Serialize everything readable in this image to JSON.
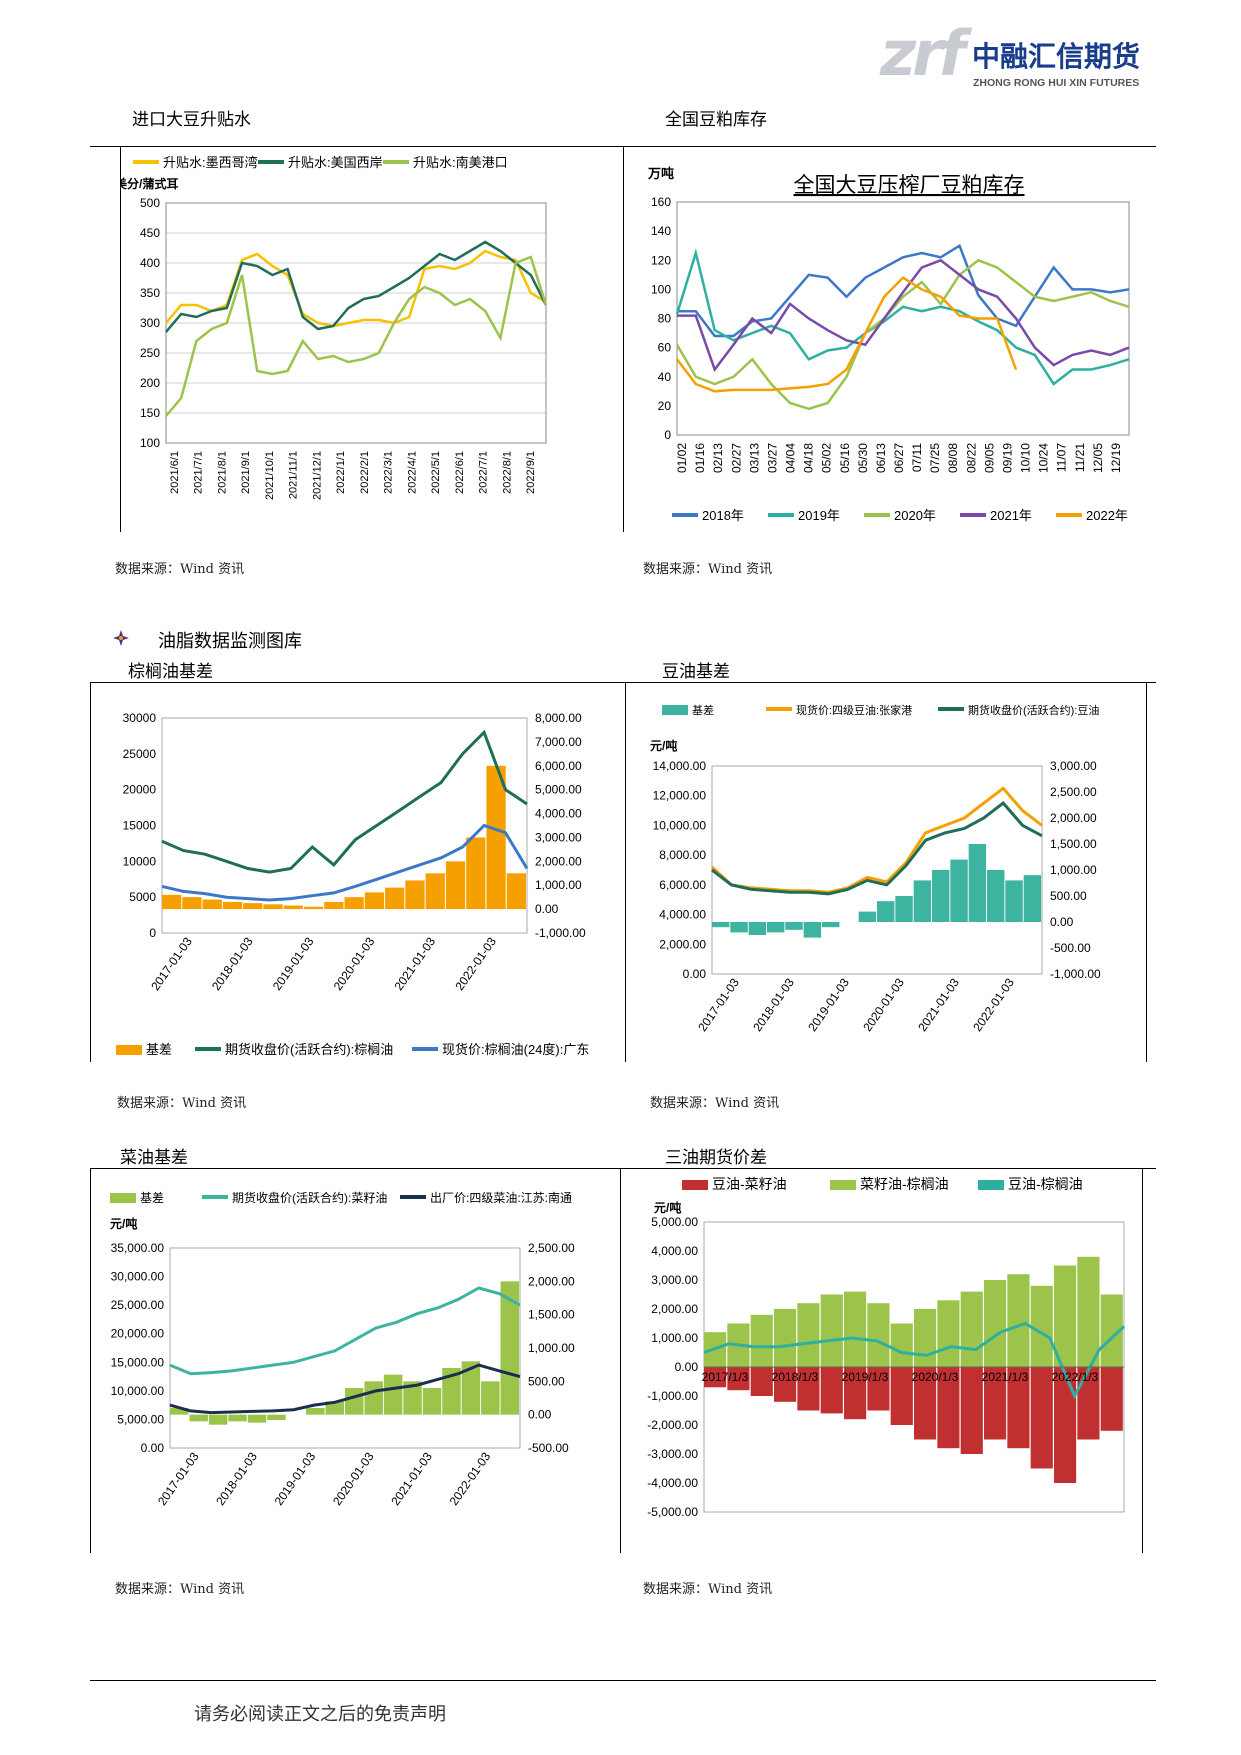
{
  "header": {
    "logo_mark": "zrf",
    "company_cn": "中融汇信期货",
    "company_en": "ZHONG RONG HUI XIN FUTURES"
  },
  "sections": {
    "s1_left": "进口大豆升贴水",
    "s1_right": "全国豆粕库存",
    "group_title": "油脂数据监测图库",
    "s2_left": "棕榈油基差",
    "s2_right": "豆油基差",
    "s3_left": "菜油基差",
    "s3_right": "三油期货价差"
  },
  "source_text": "数据来源：Wind 资讯",
  "footer": "请务必阅读正文之后的免责声明",
  "colors": {
    "yellow": "#f5c100",
    "dkgreen": "#1f6e5a",
    "ltgreen": "#9cc34a",
    "blue": "#3c78c8",
    "teal": "#2eb0a0",
    "purple": "#7b4aa8",
    "orange": "#f5a000",
    "red": "#c03030",
    "navy": "#1a2e50",
    "seagreen": "#3cb4a0"
  },
  "chart_data": [
    {
      "id": "c1",
      "type": "line",
      "ylabel": "美分/蒲式耳",
      "ylim": [
        100,
        500
      ],
      "yticks": [
        "500",
        "450",
        "400",
        "350",
        "300",
        "250",
        "200",
        "150",
        "100"
      ],
      "xticks": [
        "2021/6/1",
        "2021/7/1",
        "2021/8/1",
        "2021/9/1",
        "2021/10/1",
        "2021/11/1",
        "2021/12/1",
        "2022/1/1",
        "2022/2/1",
        "2022/3/1",
        "2022/4/1",
        "2022/5/1",
        "2022/6/1",
        "2022/7/1",
        "2022/8/1",
        "2022/9/1"
      ],
      "series": [
        {
          "name": "升贴水:墨西哥湾",
          "color": "#f5c100",
          "values": [
            300,
            330,
            330,
            320,
            330,
            405,
            415,
            395,
            380,
            315,
            300,
            295,
            300,
            305,
            305,
            300,
            310,
            390,
            395,
            390,
            400,
            420,
            410,
            405,
            350,
            335
          ]
        },
        {
          "name": "升贴水:美国西岸",
          "color": "#1f6e5a",
          "values": [
            285,
            315,
            310,
            320,
            325,
            400,
            395,
            380,
            390,
            310,
            290,
            295,
            325,
            340,
            345,
            360,
            375,
            395,
            415,
            405,
            420,
            435,
            420,
            400,
            380,
            330
          ]
        },
        {
          "name": "升贴水:南美港口",
          "color": "#9cc34a",
          "values": [
            145,
            175,
            270,
            290,
            300,
            380,
            220,
            215,
            220,
            270,
            240,
            245,
            235,
            240,
            250,
            300,
            340,
            360,
            350,
            330,
            340,
            320,
            275,
            400,
            410,
            330
          ]
        }
      ]
    },
    {
      "id": "c2",
      "type": "line",
      "title": "全国大豆压榨厂豆粕库存",
      "ylabel": "万吨",
      "ylim": [
        0,
        160
      ],
      "yticks": [
        "160",
        "140",
        "120",
        "100",
        "80",
        "60",
        "40",
        "20",
        "0"
      ],
      "xticks": [
        "01/02",
        "01/16",
        "02/13",
        "02/27",
        "03/13",
        "03/27",
        "04/04",
        "04/18",
        "05/02",
        "05/16",
        "05/30",
        "06/13",
        "06/27",
        "07/11",
        "07/25",
        "08/08",
        "08/22",
        "09/05",
        "09/19",
        "10/10",
        "10/24",
        "11/07",
        "11/21",
        "12/05",
        "12/19"
      ],
      "series": [
        {
          "name": "2018年",
          "color": "#3c78c8",
          "values": [
            85,
            85,
            68,
            68,
            78,
            80,
            95,
            110,
            108,
            95,
            108,
            115,
            122,
            125,
            122,
            130,
            96,
            80,
            75,
            95,
            115,
            100,
            100,
            98,
            100
          ]
        },
        {
          "name": "2019年",
          "color": "#2eb0a0",
          "values": [
            83,
            125,
            72,
            65,
            70,
            75,
            70,
            52,
            58,
            60,
            70,
            78,
            88,
            85,
            88,
            85,
            78,
            72,
            60,
            55,
            35,
            45,
            45,
            48,
            52
          ]
        },
        {
          "name": "2020年",
          "color": "#9cc34a",
          "values": [
            62,
            40,
            35,
            40,
            52,
            35,
            22,
            18,
            22,
            40,
            70,
            80,
            95,
            105,
            90,
            110,
            120,
            115,
            105,
            95,
            92,
            95,
            98,
            92,
            88
          ]
        },
        {
          "name": "2021年",
          "color": "#7b4aa8",
          "values": [
            82,
            82,
            45,
            62,
            80,
            70,
            90,
            80,
            72,
            65,
            62,
            80,
            98,
            115,
            120,
            110,
            100,
            95,
            80,
            60,
            48,
            55,
            58,
            55,
            60
          ]
        },
        {
          "name": "2022年",
          "color": "#f5a000",
          "values": [
            52,
            35,
            30,
            31,
            31,
            31,
            32,
            33,
            35,
            45,
            70,
            95,
            108,
            100,
            95,
            82,
            80,
            80,
            45
          ]
        }
      ]
    },
    {
      "id": "c3",
      "type": "line",
      "ylim": [
        0,
        30000
      ],
      "y2lim": [
        -1000,
        8000
      ],
      "yticks": [
        "30000",
        "25000",
        "20000",
        "15000",
        "10000",
        "5000",
        "0"
      ],
      "y2ticks": [
        "8,000.00",
        "7,000.00",
        "6,000.00",
        "5,000.00",
        "4,000.00",
        "3,000.00",
        "2,000.00",
        "1,000.00",
        "0.00",
        "-1,000.00"
      ],
      "xticks": [
        "2017-01-03",
        "2018-01-03",
        "2019-01-03",
        "2020-01-03",
        "2021-01-03",
        "2022-01-03"
      ],
      "series": [
        {
          "name": "基差",
          "color": "#f5a000",
          "values": [
            600,
            500,
            400,
            300,
            250,
            200,
            150,
            100,
            300,
            500,
            700,
            900,
            1200,
            1500,
            2000,
            3000,
            6000,
            1500
          ]
        },
        {
          "name": "期货收盘价(活跃合约):棕榈油",
          "color": "#1f6e5a",
          "values": [
            12800,
            11500,
            11000,
            10000,
            9000,
            8500,
            9000,
            12000,
            9500,
            13000,
            15000,
            17000,
            19000,
            21000,
            25000,
            28000,
            20000,
            18000
          ]
        },
        {
          "name": "现货价:棕榈油(24度):广东",
          "color": "#3c78c8",
          "values": [
            6500,
            5800,
            5500,
            5000,
            4800,
            4600,
            4800,
            5200,
            5600,
            6500,
            7500,
            8500,
            9500,
            10500,
            12000,
            15000,
            14000,
            9000
          ]
        }
      ]
    },
    {
      "id": "c4",
      "type": "line",
      "ylabel": "元/吨",
      "ylim": [
        0,
        14000
      ],
      "y2lim": [
        -1000,
        3000
      ],
      "yticks": [
        "14,000.00",
        "12,000.00",
        "10,000.00",
        "8,000.00",
        "6,000.00",
        "4,000.00",
        "2,000.00",
        "0.00"
      ],
      "y2ticks": [
        "3,000.00",
        "2,500.00",
        "2,000.00",
        "1,500.00",
        "1,000.00",
        "500.00",
        "0.00",
        "-500.00",
        "-1,000.00"
      ],
      "xticks": [
        "2017-01-03",
        "2018-01-03",
        "2019-01-03",
        "2020-01-03",
        "2021-01-03",
        "2022-01-03"
      ],
      "series": [
        {
          "name": "基差",
          "color": "#3cb4a0",
          "values": [
            -100,
            -200,
            -250,
            -200,
            -150,
            -300,
            -100,
            0,
            200,
            400,
            500,
            800,
            1000,
            1200,
            1500,
            1000,
            800,
            900
          ]
        },
        {
          "name": "现货价:四级豆油:张家港",
          "color": "#f5a000",
          "values": [
            7200,
            6000,
            5800,
            5700,
            5600,
            5600,
            5500,
            5800,
            6500,
            6200,
            7500,
            9500,
            10000,
            10500,
            11500,
            12500,
            11000,
            10000
          ]
        },
        {
          "name": "期货收盘价(活跃合约):豆油",
          "color": "#1f6e5a",
          "values": [
            7000,
            6000,
            5700,
            5600,
            5500,
            5500,
            5400,
            5700,
            6300,
            6000,
            7300,
            9000,
            9500,
            9800,
            10500,
            11500,
            10000,
            9300
          ]
        }
      ]
    },
    {
      "id": "c5",
      "type": "line",
      "ylabel": "元/吨",
      "ylim": [
        0,
        35000
      ],
      "y2lim": [
        -500,
        2500
      ],
      "yticks": [
        "35,000.00",
        "30,000.00",
        "25,000.00",
        "20,000.00",
        "15,000.00",
        "10,000.00",
        "5,000.00",
        "0.00"
      ],
      "y2ticks": [
        "2,500.00",
        "2,000.00",
        "1,500.00",
        "1,000.00",
        "500.00",
        "0.00",
        "-500.00"
      ],
      "xticks": [
        "2017-01-03",
        "2018-01-03",
        "2019-01-03",
        "2020-01-03",
        "2021-01-03",
        "2022-01-03"
      ],
      "series": [
        {
          "name": "基差",
          "color": "#9cc34a",
          "values": [
            100,
            -100,
            -150,
            -100,
            -120,
            -80,
            0,
            100,
            200,
            400,
            500,
            600,
            500,
            400,
            700,
            800,
            500,
            2000
          ]
        },
        {
          "name": "期货收盘价(活跃合约):菜籽油",
          "color": "#3cb4a0",
          "values": [
            14500,
            13000,
            13200,
            13500,
            14000,
            14500,
            15000,
            16000,
            17000,
            19000,
            21000,
            22000,
            23500,
            24500,
            26000,
            28000,
            27000,
            25000
          ]
        },
        {
          "name": "出厂价:四级菜油:江苏:南通",
          "color": "#1a2e50",
          "values": [
            7500,
            6500,
            6200,
            6300,
            6400,
            6500,
            6700,
            7500,
            8000,
            9000,
            10000,
            10500,
            11000,
            12000,
            13000,
            14500,
            13500,
            12500
          ]
        }
      ]
    },
    {
      "id": "c6",
      "type": "area",
      "ylabel": "元/吨",
      "ylim": [
        -5000,
        5000
      ],
      "yticks": [
        "5,000.00",
        "4,000.00",
        "3,000.00",
        "2,000.00",
        "1,000.00",
        "0.00",
        "-1,000.00",
        "-2,000.00",
        "-3,000.00",
        "-4,000.00",
        "-5,000.00"
      ],
      "xticks": [
        "2017/1/3",
        "2018/1/3",
        "2019/1/3",
        "2020/1/3",
        "2021/1/3",
        "2022/1/3"
      ],
      "series": [
        {
          "name": "豆油-菜籽油",
          "color": "#c03030",
          "values": [
            -700,
            -800,
            -1000,
            -1200,
            -1500,
            -1600,
            -1800,
            -1500,
            -2000,
            -2500,
            -2800,
            -3000,
            -2500,
            -2800,
            -3500,
            -4000,
            -2500,
            -2200
          ]
        },
        {
          "name": "菜籽油-棕榈油",
          "color": "#9cc34a",
          "values": [
            1200,
            1500,
            1800,
            2000,
            2200,
            2500,
            2600,
            2200,
            1500,
            2000,
            2300,
            2600,
            3000,
            3200,
            2800,
            3500,
            3800,
            2500
          ]
        },
        {
          "name": "豆油-棕榈油",
          "color": "#2eb0a0",
          "values": [
            500,
            800,
            700,
            700,
            800,
            900,
            1000,
            900,
            500,
            400,
            700,
            600,
            1200,
            1500,
            1000,
            -1000,
            600,
            1400
          ]
        }
      ]
    }
  ]
}
